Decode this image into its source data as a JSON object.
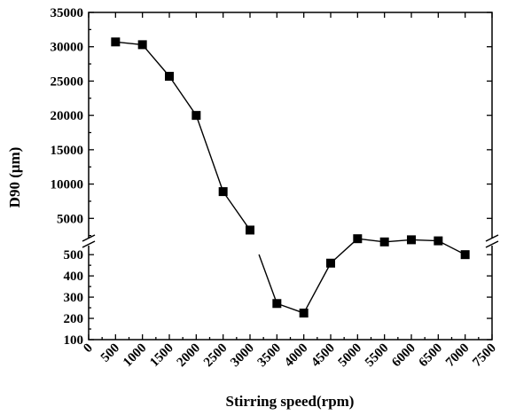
{
  "chart_data": {
    "type": "scatter",
    "title": "",
    "xlabel": "Stirring speed(rpm)",
    "ylabel": "D90 (μm)",
    "xlim": [
      0,
      7500
    ],
    "x_ticks": [
      "0",
      "500",
      "1000",
      "1500",
      "2000",
      "2500",
      "3000",
      "3500",
      "4000",
      "4500",
      "5000",
      "5500",
      "6000",
      "6500",
      "7000",
      "7500"
    ],
    "y_axis_break": true,
    "y_upper_segment": {
      "range": [
        0,
        35000
      ],
      "ticks": [
        "5000",
        "10000",
        "15000",
        "20000",
        "25000",
        "30000",
        "35000"
      ]
    },
    "y_lower_segment": {
      "range": [
        100,
        580
      ],
      "ticks": [
        "100",
        "200",
        "300",
        "400",
        "500"
      ]
    },
    "grid": false,
    "legend": "none",
    "marker": "filled-square",
    "line": "solid, joins points, interrupted at the axis break",
    "series": [
      {
        "x": [
          500,
          1000,
          1500,
          2000,
          2500,
          3000,
          3500,
          4000,
          4500,
          5000,
          5500,
          6000,
          6500,
          7000
        ],
        "y": [
          30700,
          30300,
          25700,
          20000,
          8900,
          3300,
          270,
          225,
          460,
          575,
          560,
          570,
          565,
          500
        ]
      }
    ]
  }
}
